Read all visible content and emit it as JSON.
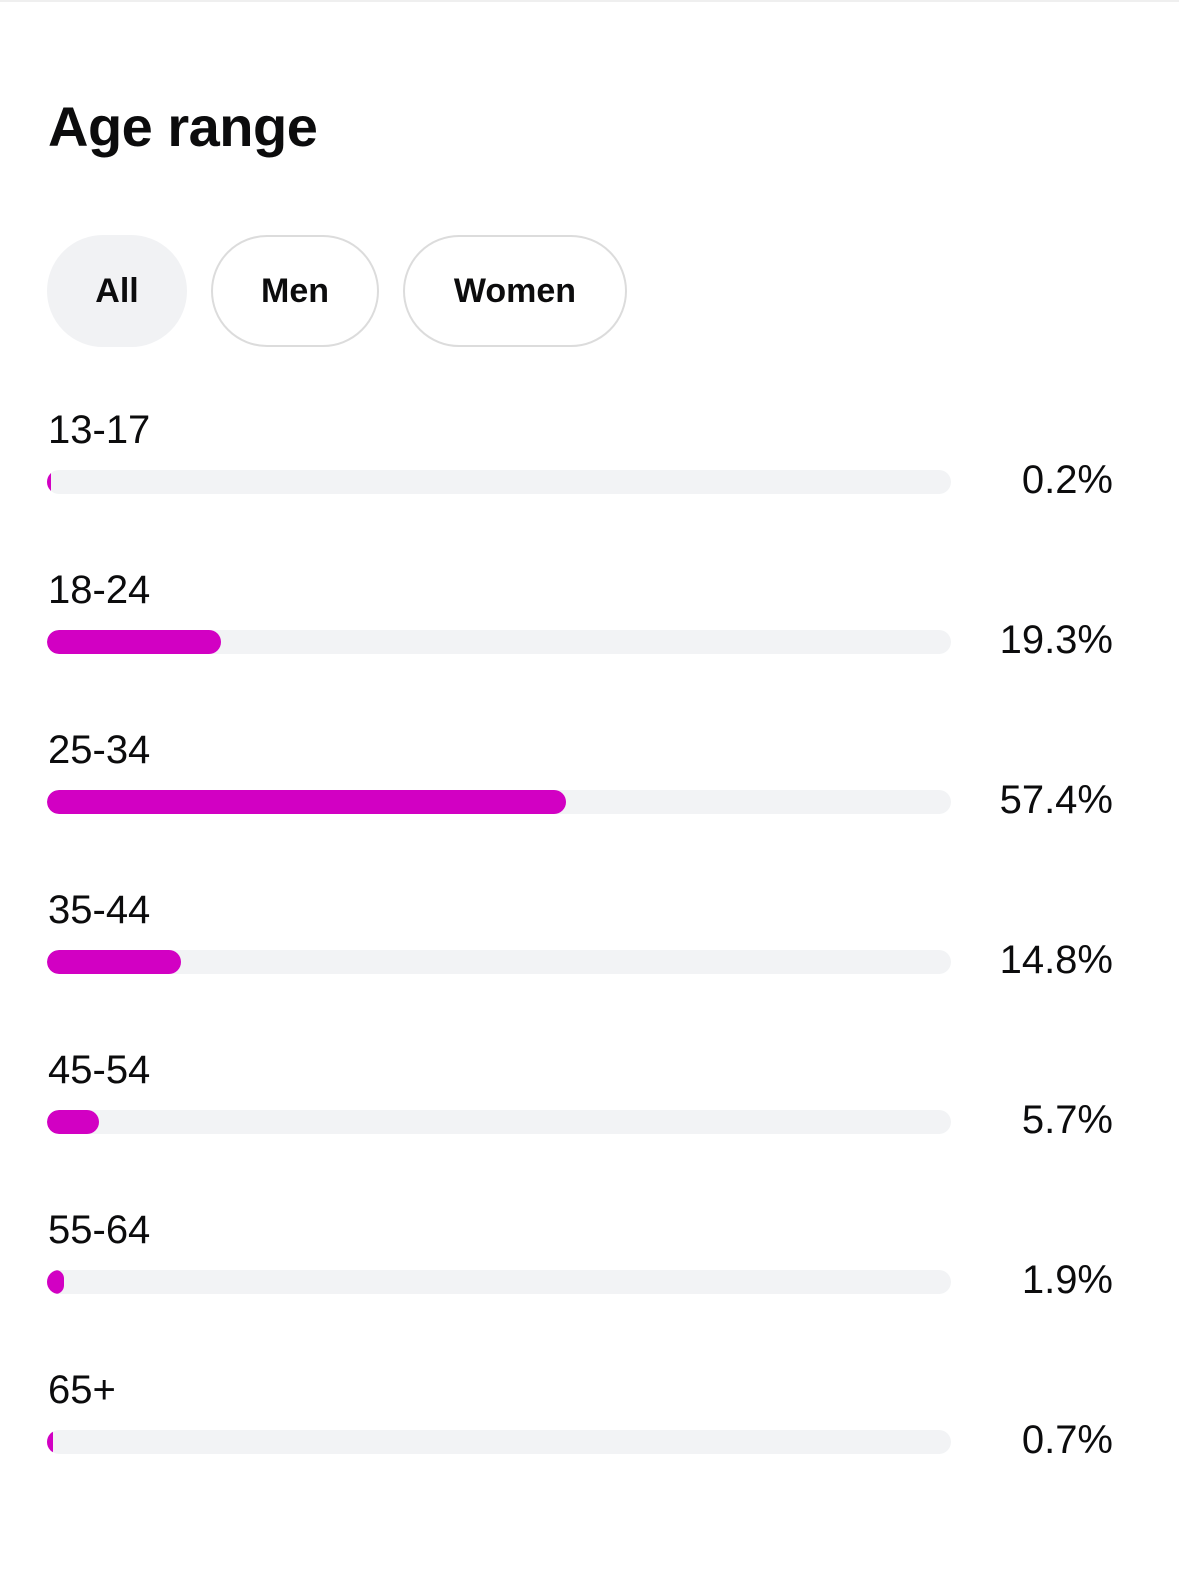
{
  "title": "Age range",
  "filters": {
    "selected": "All",
    "items": [
      {
        "label": "All"
      },
      {
        "label": "Men"
      },
      {
        "label": "Women"
      }
    ]
  },
  "colors": {
    "bar_fill": "#d200c3",
    "bar_track": "#f2f3f5",
    "selected_pill": "#f1f2f4"
  },
  "age_ranges": [
    {
      "label": "13-17",
      "value_text": "0.2%",
      "percent": 0.2
    },
    {
      "label": "18-24",
      "value_text": "19.3%",
      "percent": 19.3
    },
    {
      "label": "25-34",
      "value_text": "57.4%",
      "percent": 57.4
    },
    {
      "label": "35-44",
      "value_text": "14.8%",
      "percent": 14.8
    },
    {
      "label": "45-54",
      "value_text": "5.7%",
      "percent": 5.7
    },
    {
      "label": "55-64",
      "value_text": "1.9%",
      "percent": 1.9
    },
    {
      "label": "65+",
      "value_text": "0.7%",
      "percent": 0.7
    }
  ]
}
